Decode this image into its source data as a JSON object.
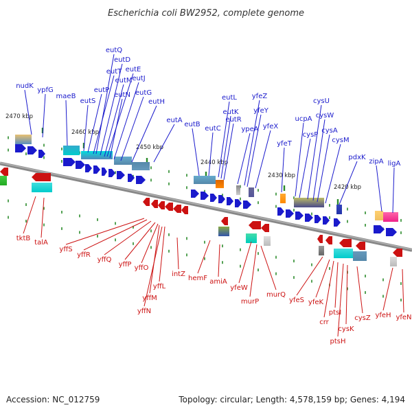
{
  "title": "Escherichia coli BW2952, complete genome",
  "footer": {
    "accession": "Accession: NC_012759",
    "topology": "Topology: circular; Length: 4,578,159 bp; Genes: 4,194"
  },
  "colors": {
    "forward_strand": "#1a1acc",
    "reverse_strand": "#cc1111",
    "backbone": "#888888",
    "tick": "#2a8a2a"
  },
  "ticks": [
    "2470 kbp",
    "2460 kbp",
    "2450 kbp",
    "2440 kbp",
    "2430 kbp",
    "2420 kbp"
  ],
  "genes_forward": [
    "nudK",
    "ypfG",
    "maeB",
    "eutS",
    "eutP",
    "eutQ",
    "eutT",
    "eutD",
    "eutM",
    "eutE",
    "eutN",
    "eutJ",
    "eutG",
    "eutH",
    "eutA",
    "eutB",
    "eutC",
    "eutL",
    "eutK",
    "eutR",
    "ypeA",
    "yfeZ",
    "yfeY",
    "yfeX",
    "yfeT",
    "ucpA",
    "cysP",
    "cysU",
    "cysW",
    "cysA",
    "cysM",
    "pdxK",
    "zipA",
    "ligA"
  ],
  "genes_reverse": [
    "tktB",
    "talA",
    "yffS",
    "yffR",
    "yffQ",
    "yffP",
    "yffO",
    "yffM",
    "yffN",
    "yffL",
    "intZ",
    "hemF",
    "amiA",
    "yfeW",
    "murP",
    "murQ",
    "yfeS",
    "yfeK",
    "crr",
    "ptsI",
    "ptsH",
    "cysK",
    "cysZ",
    "yfeH",
    "yfeN"
  ]
}
